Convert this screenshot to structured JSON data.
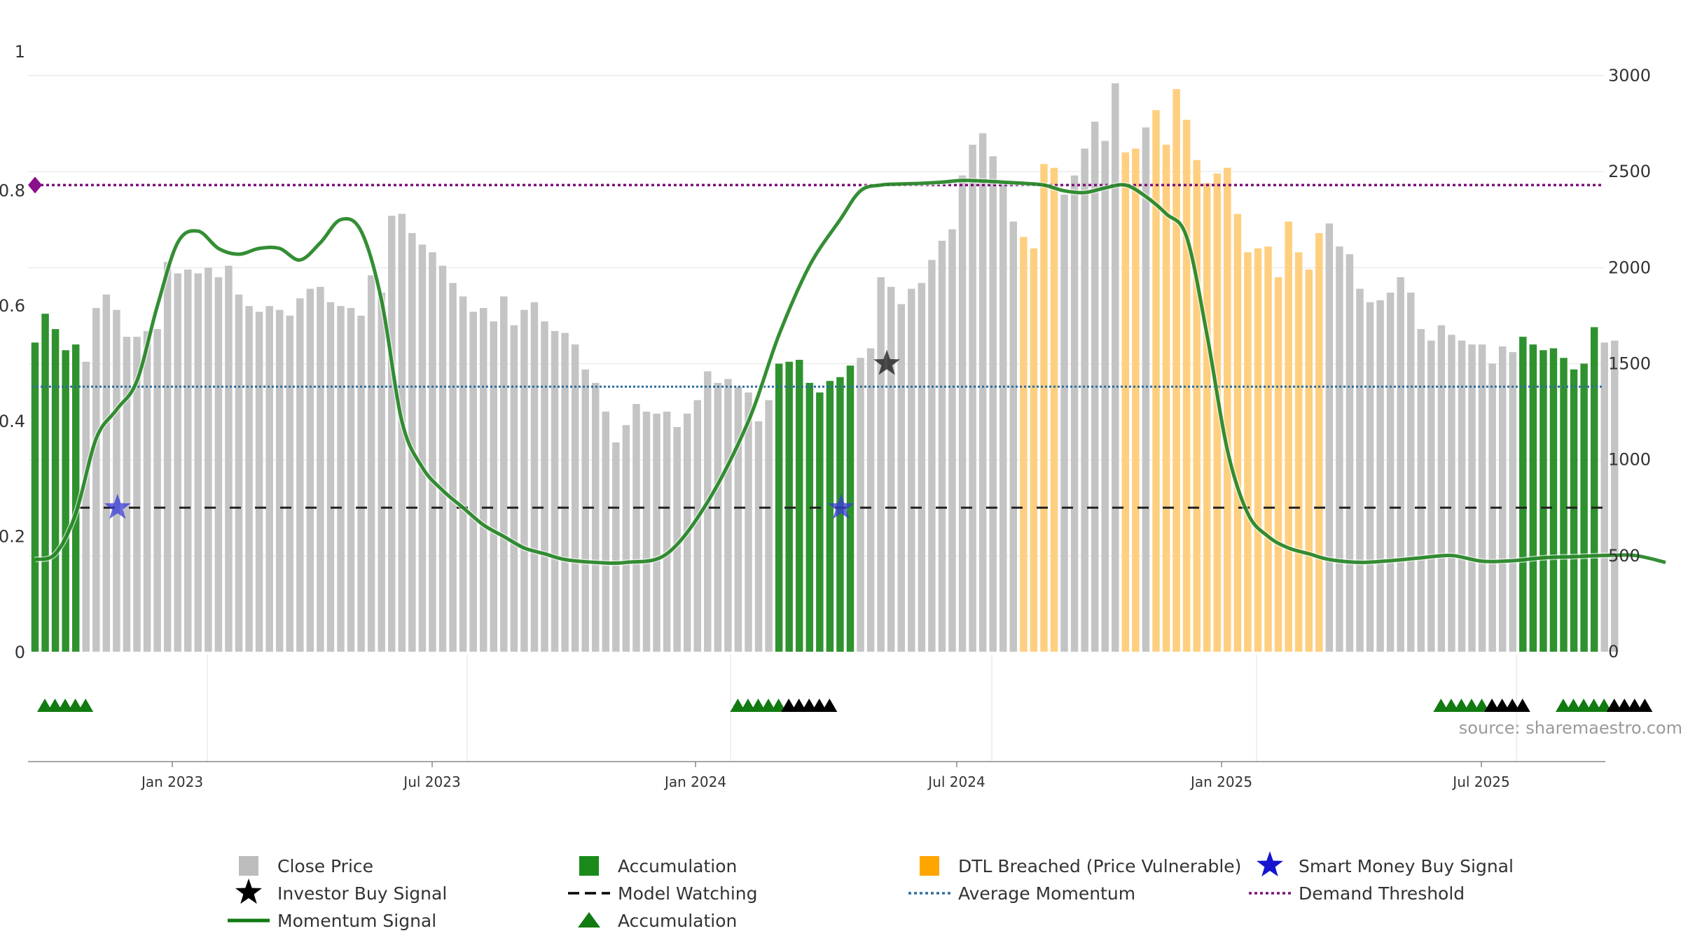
{
  "chart_data": {
    "type": "bar",
    "title": "",
    "source": "source: sharemaestro.com",
    "left_axis": {
      "ylim": [
        0,
        1
      ],
      "ticks": [
        "0",
        "0.2",
        "0.4",
        "0.6",
        "0.8",
        "1"
      ]
    },
    "right_axis": {
      "ylim": [
        0,
        3000
      ],
      "ticks": [
        "0",
        "500",
        "1000",
        "1500",
        "2000",
        "2500",
        "3000"
      ]
    },
    "x_ticks": [
      "Jan 2023",
      "Jul 2023",
      "Jan 2024",
      "Jul 2024",
      "Jan 2025",
      "Jul 2025"
    ],
    "legend": [
      {
        "label": "Close Price",
        "marker": "square",
        "color": "#bdbdbd"
      },
      {
        "label": "Accumulation",
        "marker": "square",
        "color": "#1a8a1a"
      },
      {
        "label": "DTL Breached (Price Vulnerable)",
        "marker": "square",
        "color": "#ffa500"
      },
      {
        "label": "Smart Money Buy Signal",
        "marker": "star",
        "color": "#1515d0"
      },
      {
        "label": "Investor Buy Signal",
        "marker": "star",
        "color": "#000000"
      },
      {
        "label": "Model Watching",
        "marker": "dash",
        "color": "#000000"
      },
      {
        "label": "Average Momentum",
        "marker": "dotted",
        "color": "#2e6e9e"
      },
      {
        "label": "Demand Threshold",
        "marker": "dotted",
        "color": "#7a0f7a"
      },
      {
        "label": "Momentum Signal",
        "marker": "line",
        "color": "#117a11"
      },
      {
        "label": "Accumulation",
        "marker": "triangle",
        "color": "#117a11"
      }
    ],
    "bars": {
      "states": "Each weekly bar state: g = Accumulation, n = Close Price, o = DTL Breached",
      "close_price": [
        1610,
        1760,
        1680,
        1570,
        1600,
        1510,
        1790,
        1860,
        1780,
        1640,
        1640,
        1670,
        1680,
        2030,
        1970,
        1990,
        1970,
        2000,
        1950,
        2010,
        1860,
        1800,
        1770,
        1800,
        1780,
        1750,
        1840,
        1890,
        1900,
        1820,
        1800,
        1790,
        1750,
        1960,
        1870,
        2270,
        2280,
        2180,
        2120,
        2080,
        2010,
        1920,
        1850,
        1770,
        1790,
        1720,
        1850,
        1700,
        1780,
        1820,
        1720,
        1670,
        1660,
        1600,
        1470,
        1400,
        1250,
        1090,
        1180,
        1290,
        1250,
        1240,
        1250,
        1170,
        1240,
        1310,
        1460,
        1400,
        1420,
        1380,
        1350,
        1200,
        1310,
        1500,
        1510,
        1520,
        1400,
        1350,
        1410,
        1430,
        1490,
        1530,
        1580,
        1950,
        1900,
        1810,
        1890,
        1920,
        2040,
        2140,
        2200,
        2480,
        2640,
        2700,
        2580,
        2440,
        2240,
        2160,
        2100,
        2540,
        2520,
        2380,
        2480,
        2620,
        2760,
        2660,
        2960,
        2600,
        2620,
        2730,
        2820,
        2640,
        2930,
        2770,
        2560,
        2440,
        2490,
        2520,
        2280,
        2080,
        2100,
        2110,
        1950,
        2240,
        2080,
        1990,
        2180,
        2230,
        2110,
        2070,
        1890,
        1820,
        1830,
        1870,
        1950,
        1870,
        1680,
        1620,
        1700,
        1650,
        1620,
        1600,
        1600,
        1500,
        1590,
        1560,
        1640,
        1600,
        1570,
        1580,
        1530,
        1470,
        1500,
        1690,
        1610,
        1620
      ],
      "state": "gggggnnnnnnnnnnnnnnnnnnnnnnnnnnnnnnnnnnnnnnnnnnnnnnnnnnnnnnnnnnnnnnnnnnnnggggggggnnnnnnnnnnnnnnnnoooonnnnnnoonooooooooooooooooonnnnnnnnnnnnnnnnnnnggggggggnnnnnnggggggggn"
    },
    "momentum_signal": {
      "x_index": [
        0,
        2,
        4,
        6,
        8,
        10,
        12,
        14,
        16,
        18,
        20,
        22,
        24,
        26,
        28,
        30,
        32,
        34,
        36,
        38,
        40,
        42,
        44,
        46,
        48,
        50,
        52,
        55,
        58,
        62,
        66,
        70,
        73,
        76,
        79,
        81,
        83,
        85,
        87,
        89,
        91,
        93,
        95,
        97,
        99,
        101,
        103,
        105,
        107,
        109,
        111,
        113,
        115,
        117,
        119,
        121,
        123,
        125,
        127,
        130,
        133,
        136,
        139,
        142,
        145,
        148,
        151,
        154,
        157,
        160
      ],
      "values": [
        0.16,
        0.17,
        0.24,
        0.37,
        0.42,
        0.47,
        0.6,
        0.71,
        0.73,
        0.7,
        0.69,
        0.7,
        0.7,
        0.68,
        0.71,
        0.75,
        0.73,
        0.61,
        0.4,
        0.32,
        0.28,
        0.25,
        0.22,
        0.2,
        0.18,
        0.17,
        0.16,
        0.155,
        0.155,
        0.17,
        0.26,
        0.4,
        0.55,
        0.67,
        0.75,
        0.8,
        0.81,
        0.812,
        0.813,
        0.815,
        0.818,
        0.817,
        0.815,
        0.813,
        0.81,
        0.8,
        0.797,
        0.805,
        0.81,
        0.79,
        0.76,
        0.72,
        0.55,
        0.35,
        0.24,
        0.2,
        0.18,
        0.17,
        0.16,
        0.155,
        0.158,
        0.163,
        0.167,
        0.157,
        0.158,
        0.163,
        0.165,
        0.167,
        0.167,
        0.155
      ]
    },
    "average_momentum": 0.46,
    "model_watching": 0.25,
    "demand_threshold": 0.81,
    "smart_money_buy_signals": [
      {
        "x_index": 5,
        "value": 0.25
      },
      {
        "x_index": 76,
        "value": 0.25
      }
    ],
    "investor_buy_signals": [
      {
        "x_index": 82,
        "value": 0.5
      }
    ],
    "accumulation_markers": {
      "green_x_index": [
        0,
        1,
        2,
        3,
        4,
        68,
        69,
        70,
        71,
        72,
        137,
        138,
        139,
        140,
        141,
        149,
        150,
        151,
        152,
        153
      ],
      "black_x_index": [
        73,
        74,
        75,
        76,
        77,
        142,
        143,
        144,
        145,
        154,
        155,
        156,
        157
      ]
    }
  }
}
